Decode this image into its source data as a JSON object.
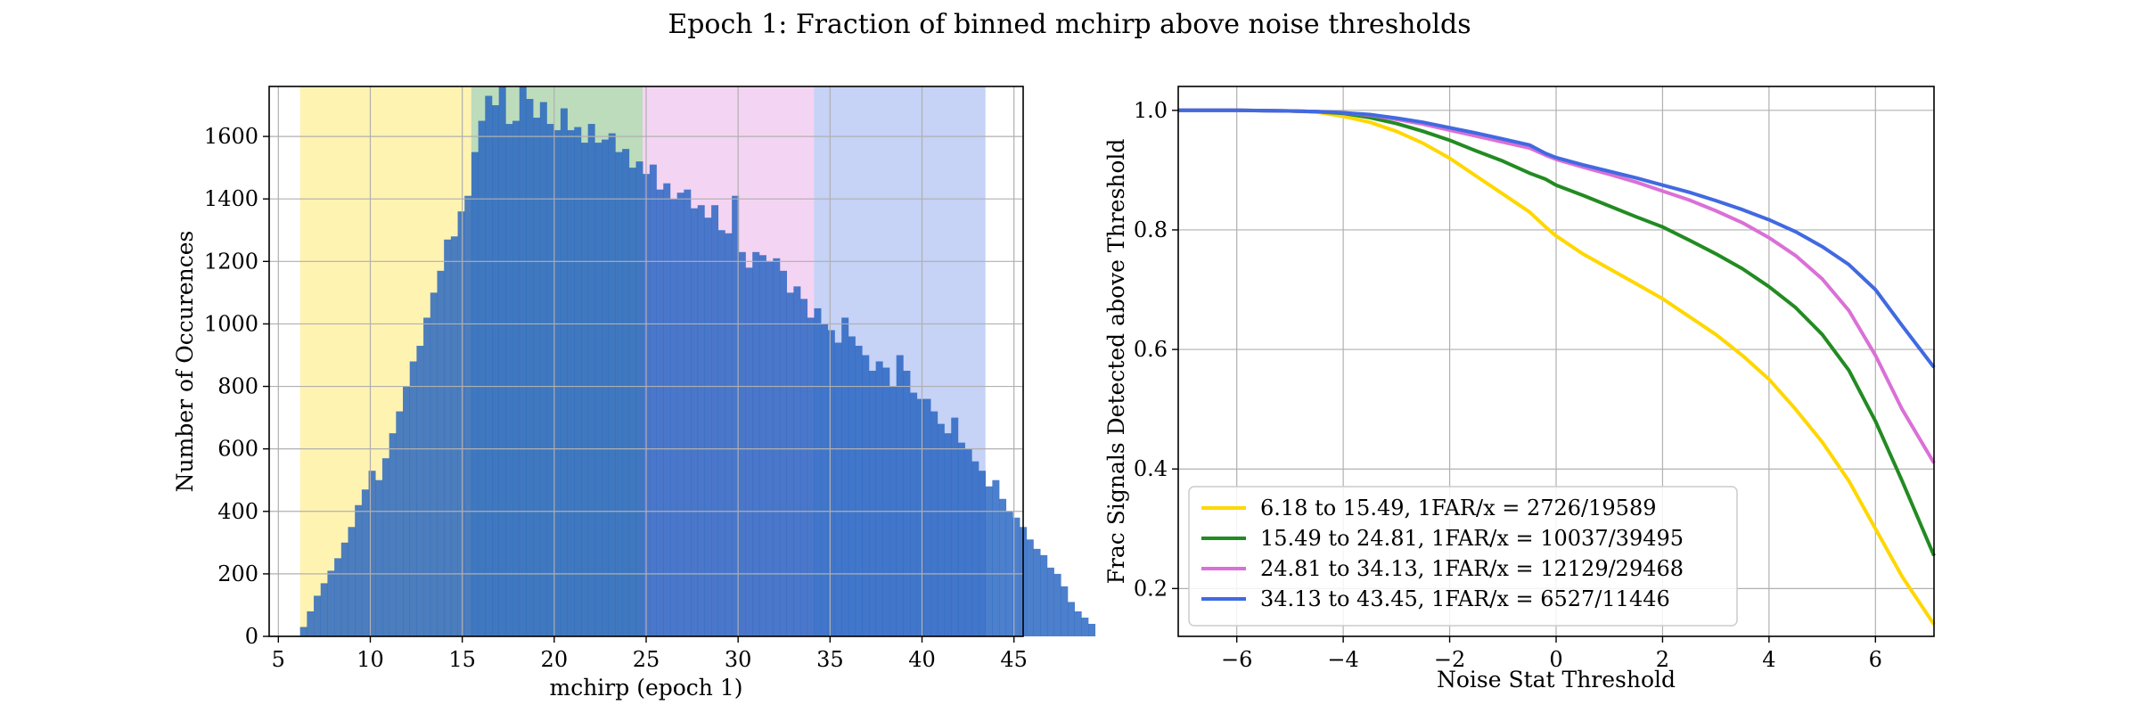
{
  "figure": {
    "title": "Epoch 1: Fraction of binned mchirp above noise thresholds"
  },
  "chart_data": [
    {
      "type": "bar",
      "subtype": "histogram",
      "xlabel": "mchirp (epoch 1)",
      "ylabel": "Number of Occurences",
      "xlim": [
        4.5,
        45.5
      ],
      "ylim": [
        0,
        1760
      ],
      "xticks": [
        5,
        10,
        15,
        20,
        25,
        30,
        35,
        40,
        45
      ],
      "yticks": [
        0,
        200,
        400,
        600,
        800,
        1000,
        1200,
        1400,
        1600
      ],
      "grid": true,
      "bar_color": "#1f5fbf",
      "bin_edges_start": 6.18,
      "bin_width": 0.3727,
      "values": [
        30,
        80,
        130,
        170,
        210,
        250,
        300,
        350,
        420,
        470,
        530,
        500,
        570,
        650,
        720,
        800,
        880,
        930,
        1020,
        1100,
        1170,
        1270,
        1280,
        1360,
        1410,
        1550,
        1650,
        1730,
        1700,
        1760,
        1640,
        1650,
        1760,
        1720,
        1660,
        1710,
        1640,
        1620,
        1690,
        1620,
        1630,
        1580,
        1640,
        1580,
        1590,
        1610,
        1550,
        1560,
        1500,
        1520,
        1480,
        1510,
        1430,
        1450,
        1400,
        1420,
        1430,
        1370,
        1380,
        1340,
        1380,
        1300,
        1290,
        1410,
        1230,
        1180,
        1230,
        1220,
        1200,
        1210,
        1170,
        1100,
        1120,
        1080,
        1020,
        1050,
        1000,
        980,
        940,
        1020,
        960,
        930,
        900,
        850,
        880,
        860,
        800,
        900,
        850,
        780,
        760,
        760,
        720,
        680,
        650,
        700,
        620,
        600,
        560,
        530,
        480,
        500,
        440,
        400,
        380,
        350,
        310,
        280,
        260,
        220,
        200,
        160,
        110,
        80,
        60,
        40
      ],
      "bands": [
        {
          "from": 6.18,
          "to": 15.49,
          "color": "#ffd700"
        },
        {
          "from": 15.49,
          "to": 24.81,
          "color": "#228b22"
        },
        {
          "from": 24.81,
          "to": 34.13,
          "color": "#da70d6"
        },
        {
          "from": 34.13,
          "to": 43.45,
          "color": "#4169e1"
        }
      ]
    },
    {
      "type": "line",
      "xlabel": "Noise Stat Threshold",
      "ylabel": "Frac Signals Detected above Threshold",
      "xlim": [
        -7.1,
        7.1
      ],
      "ylim": [
        0.12,
        1.04
      ],
      "xticks": [
        -6,
        -4,
        -2,
        0,
        2,
        4,
        6
      ],
      "yticks": [
        0.2,
        0.4,
        0.6,
        0.8,
        1.0
      ],
      "xticklabels": [
        "−6",
        "−4",
        "−2",
        "0",
        "2",
        "4",
        "6"
      ],
      "yticklabels": [
        "0.2",
        "0.4",
        "0.6",
        "0.8",
        "1.0"
      ],
      "grid": true,
      "legend_position": "lower-left",
      "series": [
        {
          "name": "6.18 to 15.49, 1FAR/x = 2726/19589",
          "color": "#ffd700",
          "x": [
            -7.1,
            -6,
            -5,
            -4.5,
            -4,
            -3.5,
            -3,
            -2.5,
            -2,
            -1.5,
            -1,
            -0.5,
            -0.2,
            0,
            0.5,
            1,
            1.5,
            2,
            2.5,
            3,
            3.5,
            4,
            4.5,
            5,
            5.5,
            6,
            6.5,
            7.1
          ],
          "y": [
            1.0,
            1.0,
            0.999,
            0.997,
            0.99,
            0.98,
            0.965,
            0.945,
            0.92,
            0.89,
            0.86,
            0.83,
            0.805,
            0.79,
            0.76,
            0.735,
            0.71,
            0.685,
            0.655,
            0.625,
            0.59,
            0.55,
            0.5,
            0.445,
            0.38,
            0.3,
            0.22,
            0.14
          ]
        },
        {
          "name": "15.49 to 24.81, 1FAR/x = 10037/39495",
          "color": "#228b22",
          "x": [
            -7.1,
            -6,
            -5,
            -4.5,
            -4,
            -3.5,
            -3,
            -2.5,
            -2,
            -1.5,
            -1,
            -0.5,
            -0.2,
            0,
            0.5,
            1,
            1.5,
            2,
            2.5,
            3,
            3.5,
            4,
            4.5,
            5,
            5.5,
            6,
            6.5,
            7.1
          ],
          "y": [
            1.0,
            1.0,
            0.999,
            0.998,
            0.995,
            0.988,
            0.978,
            0.965,
            0.95,
            0.932,
            0.915,
            0.895,
            0.885,
            0.875,
            0.858,
            0.84,
            0.822,
            0.805,
            0.783,
            0.76,
            0.735,
            0.705,
            0.67,
            0.625,
            0.565,
            0.48,
            0.38,
            0.255
          ]
        },
        {
          "name": "24.81 to 34.13, 1FAR/x = 12129/29468",
          "color": "#da70d6",
          "x": [
            -7.1,
            -6,
            -5,
            -4.5,
            -4,
            -3.5,
            -3,
            -2.5,
            -2,
            -1.5,
            -1,
            -0.5,
            -0.2,
            0,
            0.5,
            1,
            1.5,
            2,
            2.5,
            3,
            3.5,
            4,
            4.5,
            5,
            5.5,
            6,
            6.5,
            7.1
          ],
          "y": [
            1.0,
            1.0,
            0.999,
            0.998,
            0.996,
            0.992,
            0.985,
            0.977,
            0.967,
            0.957,
            0.947,
            0.937,
            0.925,
            0.918,
            0.905,
            0.893,
            0.88,
            0.865,
            0.85,
            0.832,
            0.812,
            0.787,
            0.757,
            0.718,
            0.665,
            0.59,
            0.5,
            0.41
          ]
        },
        {
          "name": "34.13 to 43.45, 1FAR/x = 6527/11446",
          "color": "#4169e1",
          "x": [
            -7.1,
            -6,
            -5,
            -4.5,
            -4,
            -3.5,
            -3,
            -2.5,
            -2,
            -1.5,
            -1,
            -0.5,
            -0.2,
            0,
            0.5,
            1,
            1.5,
            2,
            2.5,
            3,
            3.5,
            4,
            4.5,
            5,
            5.5,
            6,
            6.5,
            7.1
          ],
          "y": [
            1.0,
            1.0,
            0.999,
            0.998,
            0.996,
            0.993,
            0.987,
            0.98,
            0.971,
            0.962,
            0.952,
            0.942,
            0.928,
            0.921,
            0.909,
            0.898,
            0.887,
            0.875,
            0.863,
            0.849,
            0.834,
            0.817,
            0.797,
            0.772,
            0.742,
            0.7,
            0.64,
            0.57
          ]
        }
      ]
    }
  ]
}
